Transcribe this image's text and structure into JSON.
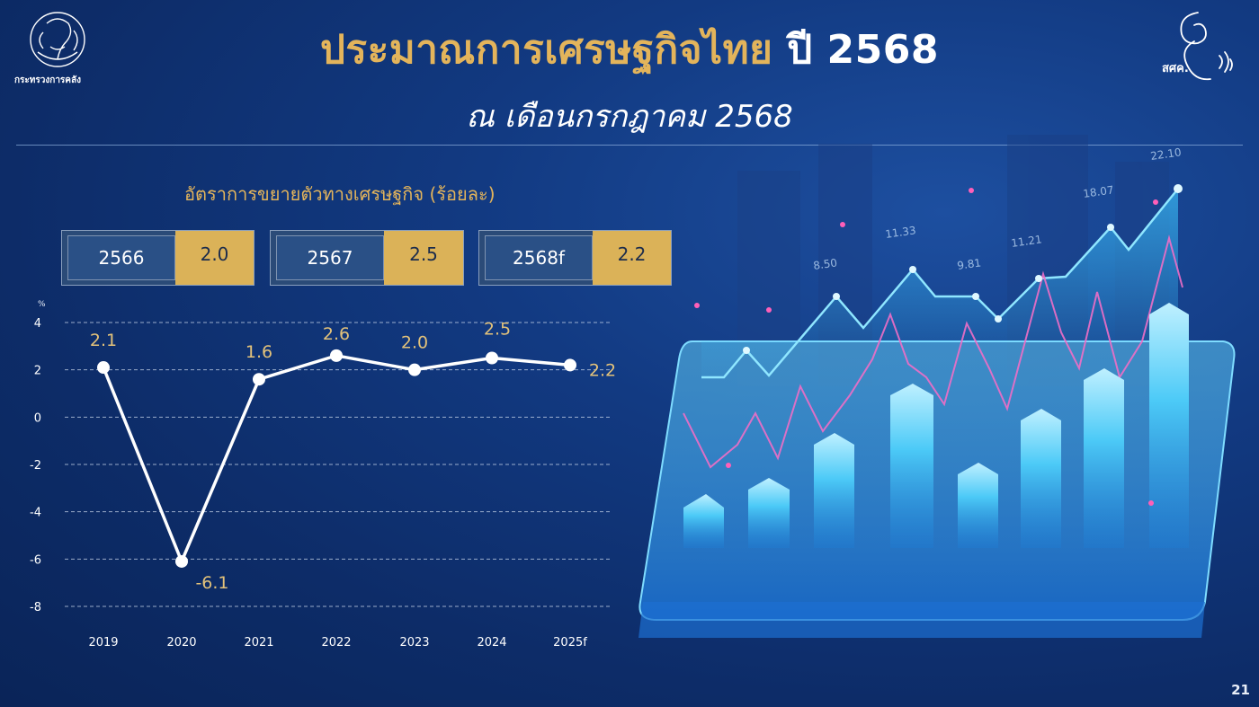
{
  "header": {
    "title_main": "ประมาณการเศรษฐกิจไทย",
    "title_year": "ปี 2568",
    "subtitle": "ณ เดือนกรกฎาคม 2568",
    "left_logo_text": "กระทรวงการคลัง",
    "right_logo_text": "สศค."
  },
  "summary": {
    "heading": "อัตราการขยายตัวทางเศรษฐกิจ (ร้อยละ)",
    "boxes": [
      {
        "year": "2566",
        "value": "2.0"
      },
      {
        "year": "2567",
        "value": "2.5"
      },
      {
        "year": "2568f",
        "value": "2.2"
      }
    ]
  },
  "chart_data": {
    "type": "line",
    "title": "อัตราการขยายตัวทางเศรษฐกิจ (ร้อยละ)",
    "unit_label": "%",
    "categories": [
      "2019",
      "2020",
      "2021",
      "2022",
      "2023",
      "2024",
      "2025f"
    ],
    "series": [
      {
        "values": [
          2.1,
          -6.1,
          1.6,
          2.6,
          2.0,
          2.5,
          2.2
        ],
        "labels": [
          "2.1",
          "-6.1",
          "1.6",
          "2.6",
          "2.0",
          "2.5",
          "2.2"
        ]
      }
    ],
    "ylim": [
      -8,
      4
    ],
    "yticks": [
      "4",
      "2",
      "0",
      "-2",
      "-4",
      "-6",
      "-8"
    ],
    "grid": true,
    "line_color": "#ffffff",
    "label_color": "#e3c27a"
  },
  "illustration": {
    "numbers": [
      "22.10",
      "18.07",
      "11.33",
      "11.21",
      "9.81",
      "8.50"
    ]
  },
  "footer": {
    "page_number": "21"
  },
  "colors": {
    "gold": "#e3b45b",
    "navy": "#0d2c68",
    "cyan": "#39c6f4"
  }
}
